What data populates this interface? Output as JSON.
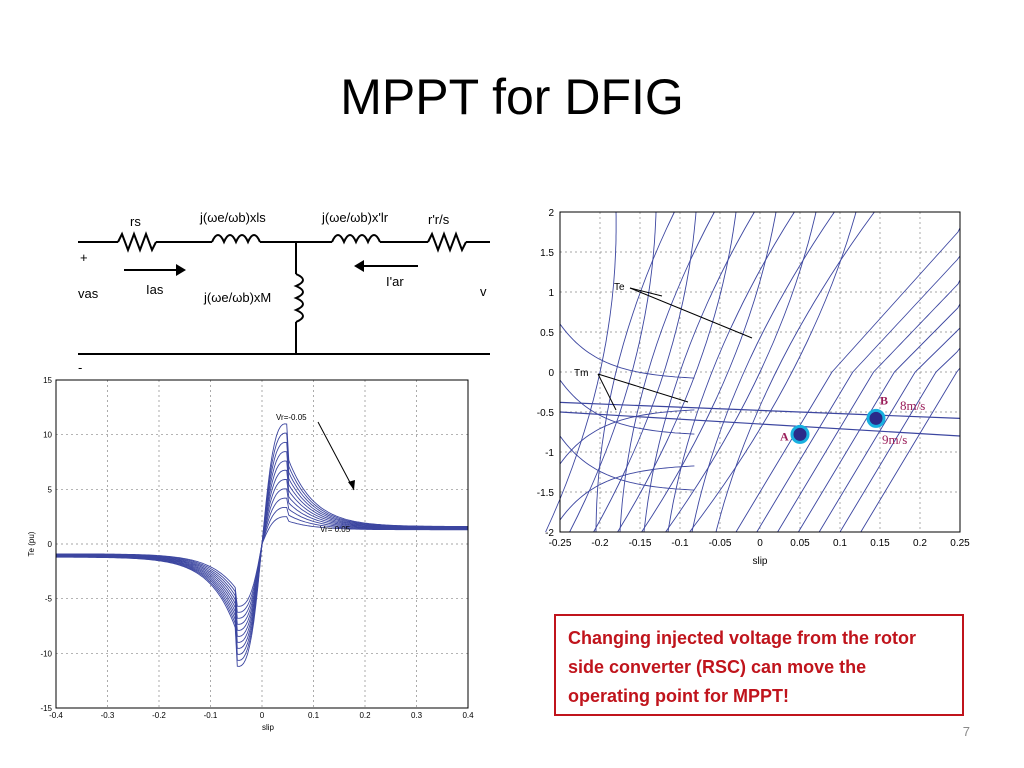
{
  "slide": {
    "title": "MPPT for DFIG",
    "note": "Changing injected voltage from the rotor side converter (RSC) can move the operating point for MPPT!",
    "page_number": "7",
    "colors": {
      "curve": "#3c46a0",
      "note_red": "#c0141c",
      "marker_fill": "#2a2a8a",
      "marker_ring": "#18b0e0",
      "label_magenta": "#9a1e5a"
    }
  },
  "circuit": {
    "rs": "rs",
    "x_ls": "j(ωe/ωb)xls",
    "x_lr": "j(ωe/ωb)x'lr",
    "rr": "r'r/s",
    "x_M": "j(ωe/ωb)xM",
    "v_as": "vas",
    "i_as": "Ias",
    "i_ar": "I'ar",
    "v_right": "v",
    "plus": "+",
    "minus": "-",
    "icons": [
      "resistor-icon",
      "inductor-icon",
      "current-arrow-icon"
    ]
  },
  "chart_data": [
    {
      "type": "line",
      "xlabel": "slip",
      "ylabel": "Te (pu)",
      "xlim": [
        -0.4,
        0.4
      ],
      "ylim": [
        -15,
        15
      ],
      "x_ticks": [
        "-0.4",
        "-0.3",
        "-0.2",
        "-0.1",
        "0",
        "0.1",
        "0.2",
        "0.3",
        "0.4"
      ],
      "y_ticks": [
        "15",
        "10",
        "5",
        "0",
        "-5",
        "-10",
        "-15"
      ],
      "grid": true,
      "annotations": [
        "Vr=-0.05",
        "Vr= 0.05"
      ],
      "family": "torque-slip curves for injected rotor voltage from Vr=-0.05 to Vr=0.05",
      "series_count": 11,
      "peak_top": {
        "x": 0.02,
        "y": 11
      },
      "peak_bottom": {
        "x": -0.02,
        "y": -11.2
      },
      "left_end_y": -0.9,
      "right_end_y": 1.6
    },
    {
      "type": "line",
      "xlabel": "slip",
      "xlim": [
        -0.25,
        0.25
      ],
      "ylim": [
        -2,
        2
      ],
      "x_ticks": [
        "-0.25",
        "-0.2",
        "-0.15",
        "-0.1",
        "-0.05",
        "0",
        "0.05",
        "0.1",
        "0.15",
        "0.2",
        "0.25"
      ],
      "y_ticks": [
        "2",
        "1.5",
        "1",
        "0.5",
        "0",
        "-0.5",
        "-1",
        "-1.5",
        "-2"
      ],
      "grid": true,
      "annotations": [
        "Te",
        "Tm",
        "8m/s",
        "9m/s"
      ],
      "points": [
        {
          "label": "A",
          "x": 0.05,
          "y": -0.78
        },
        {
          "label": "B",
          "x": 0.145,
          "y": -0.58
        }
      ],
      "mechanical_torque_lines": [
        {
          "wind": "8m/s",
          "y_at_left": -0.38,
          "y_at_right": -0.58
        },
        {
          "wind": "9m/s",
          "y_at_left": -0.5,
          "y_at_right": -0.8
        }
      ]
    }
  ]
}
